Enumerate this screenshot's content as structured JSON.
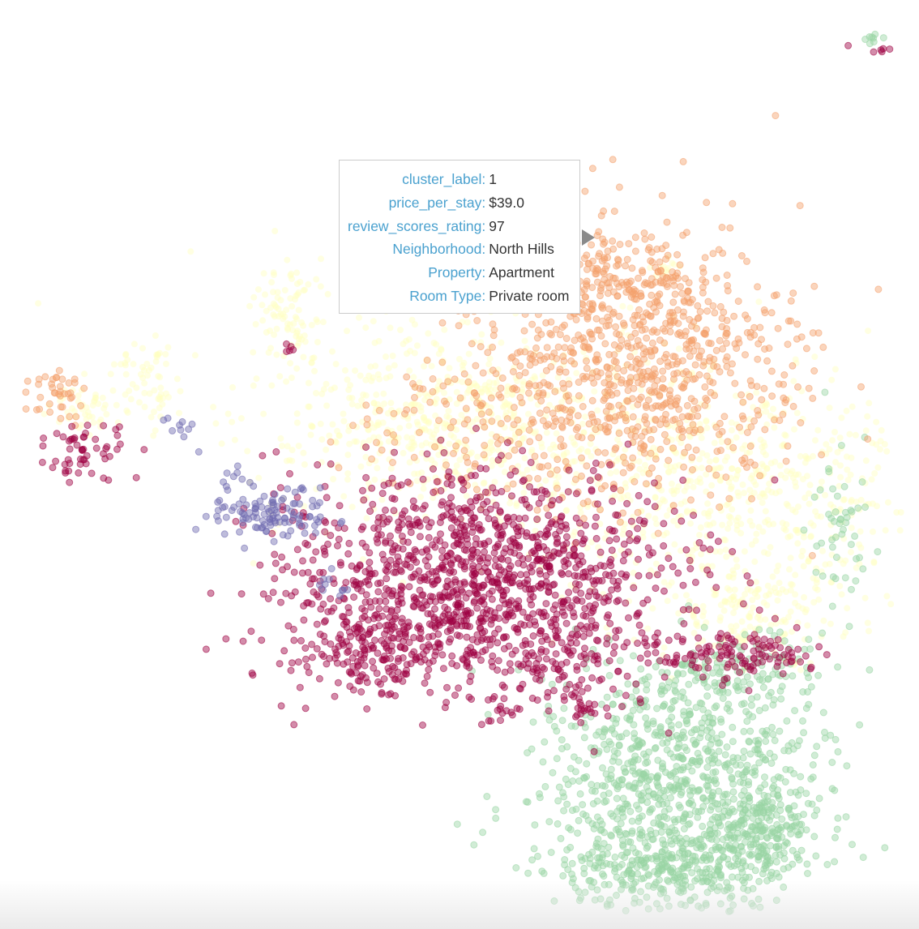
{
  "chart_data": {
    "type": "scatter",
    "title": "",
    "xlabel": "",
    "ylabel": "",
    "axes_visible": false,
    "grid": false,
    "marker": "circle",
    "point_opacity": 0.45,
    "series": [
      {
        "cluster": "pale-yellow",
        "color": "#ffffbf"
      },
      {
        "cluster": "orange",
        "color": "#f4a16d"
      },
      {
        "cluster": "maroon",
        "color": "#9e0142"
      },
      {
        "cluster": "green",
        "color": "#99d5a4"
      },
      {
        "cluster": "purple",
        "color": "#6f6ab0"
      }
    ]
  },
  "tooltip": {
    "key_color": "#4aa1cf",
    "rows": [
      {
        "key": "cluster_label:",
        "value": "1"
      },
      {
        "key": "price_per_stay:",
        "value": "$39.0"
      },
      {
        "key": "review_scores_rating:",
        "value": "97"
      },
      {
        "key": "Neighborhood:",
        "value": "North Hills"
      },
      {
        "key": "Property:",
        "value": "Apartment"
      },
      {
        "key": "Room Type:",
        "value": "Private room"
      }
    ]
  }
}
